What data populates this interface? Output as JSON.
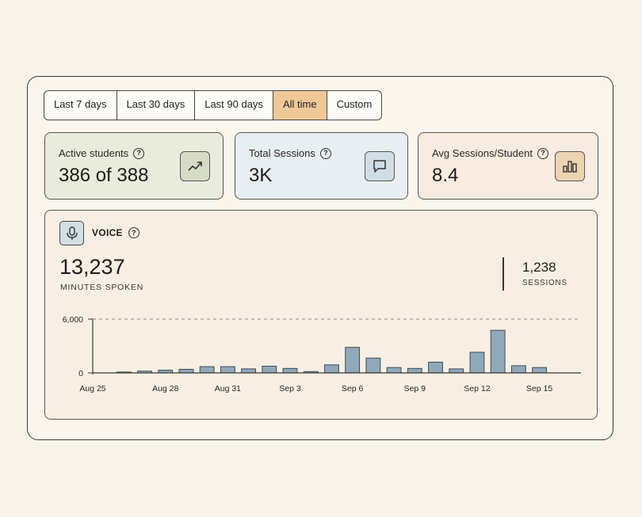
{
  "filters": {
    "options": [
      "Last 7 days",
      "Last 30 days",
      "Last 90 days",
      "All time",
      "Custom"
    ],
    "selected": "All time"
  },
  "stats": {
    "active_students": {
      "label": "Active students",
      "value": "386 of 388",
      "icon": "trending-up-icon"
    },
    "total_sessions": {
      "label": "Total Sessions",
      "value": "3K",
      "icon": "chat-bubble-icon"
    },
    "avg_sessions": {
      "label": "Avg Sessions/Student",
      "value": "8.4",
      "icon": "bar-chart-icon"
    }
  },
  "voice": {
    "title": "VOICE",
    "icon": "microphone-icon",
    "minutes_value": "13,237",
    "minutes_label": "MINUTES SPOKEN",
    "sessions_value": "1,238",
    "sessions_label": "SESSIONS"
  },
  "colors": {
    "selected_filter": "#f0c897",
    "bar_fill": "#8fa8ba",
    "card1_bg": "#e9ecdd",
    "card2_bg": "#e8eff3",
    "card3_bg": "#f7ecdf"
  },
  "chart_data": {
    "type": "bar",
    "categories": [
      "Aug 25",
      "Aug 26",
      "Aug 27",
      "Aug 28",
      "Aug 29",
      "Aug 30",
      "Aug 31",
      "Sep 1",
      "Sep 2",
      "Sep 3",
      "Sep 4",
      "Sep 5",
      "Sep 6",
      "Sep 7",
      "Sep 8",
      "Sep 9",
      "Sep 10",
      "Sep 11",
      "Sep 12",
      "Sep 13",
      "Sep 14",
      "Sep 15",
      "Sep 16"
    ],
    "tick_labels": [
      "Aug 25",
      "Aug 28",
      "Aug 31",
      "Sep 3",
      "Sep 6",
      "Sep 9",
      "Sep 12",
      "Sep 15"
    ],
    "values": [
      0,
      100,
      200,
      300,
      400,
      700,
      700,
      450,
      750,
      500,
      150,
      900,
      2850,
      1650,
      600,
      500,
      1200,
      450,
      2300,
      4750,
      800,
      600,
      0
    ],
    "ylim": [
      0,
      6000
    ],
    "yticks": [
      "0",
      "6,000"
    ],
    "grid": "dashed line at 6,000"
  }
}
